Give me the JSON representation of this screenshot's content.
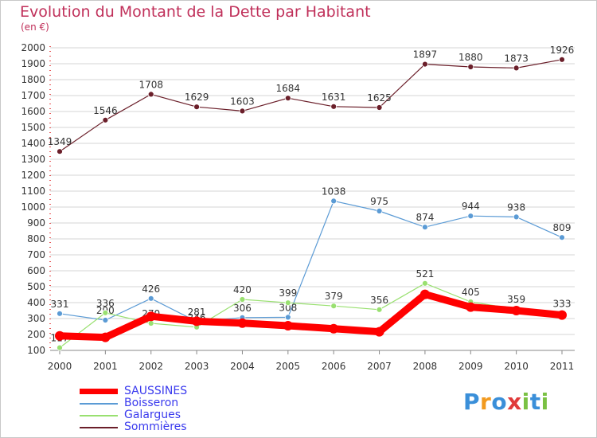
{
  "chart_data": {
    "type": "line",
    "title": "Evolution du Montant de la Dette par Habitant",
    "subtitle": "(en €)",
    "categories": [
      "2000",
      "2001",
      "2002",
      "2003",
      "2004",
      "2005",
      "2006",
      "2007",
      "2008",
      "2009",
      "2010",
      "2011"
    ],
    "ylim": [
      100,
      2000
    ],
    "yticks": [
      100,
      200,
      300,
      400,
      500,
      600,
      700,
      800,
      900,
      1000,
      1100,
      1200,
      1300,
      1400,
      1500,
      1600,
      1700,
      1800,
      1900,
      2000
    ],
    "grid": "horizontal",
    "legend_position": "bottom-left",
    "series": [
      {
        "name": "SAUSSINES",
        "color": "#ff0000",
        "values": [
          191,
          182,
          314,
          283,
          271,
          255,
          236,
          217,
          452,
          372,
          350,
          322
        ],
        "show_labels": false
      },
      {
        "name": "Boisseron",
        "color": "#5b9bd5",
        "values": [
          331,
          290,
          426,
          281,
          306,
          308,
          1038,
          975,
          874,
          944,
          938,
          809
        ],
        "show_labels": true
      },
      {
        "name": "Galargues",
        "color": "#99e070",
        "values": [
          117,
          336,
          270,
          246,
          420,
          399,
          379,
          356,
          521,
          405,
          359,
          333
        ],
        "show_labels": true
      },
      {
        "name": "Sommières",
        "color": "#6b1f2a",
        "values": [
          1349,
          1546,
          1708,
          1629,
          1603,
          1684,
          1631,
          1625,
          1897,
          1880,
          1873,
          1926
        ],
        "show_labels": true
      }
    ]
  },
  "brand": {
    "letters": [
      "P",
      "r",
      "o",
      "x",
      "i",
      "t",
      "i"
    ],
    "colors": [
      "#3a8fd9",
      "#f29a1f",
      "#3a8fd9",
      "#e03a3a",
      "#7ac143",
      "#3a8fd9",
      "#7ac143"
    ]
  }
}
